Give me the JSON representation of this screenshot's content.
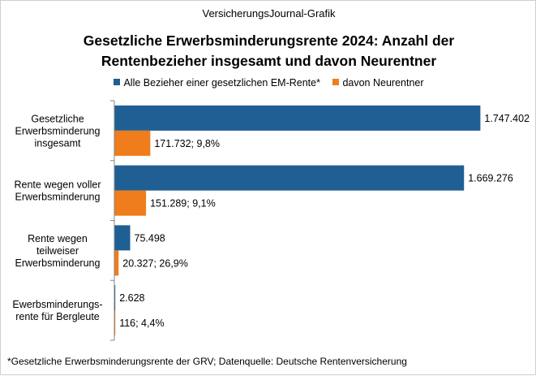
{
  "header": {
    "source": "VersicherungsJournal-Grafik"
  },
  "footnote": "*Gesetzliche Erwerbsminderungsrente  der GRV; Datenquelle:  Deutsche Rentenversicherung",
  "colors": {
    "series_total": "#1f5f94",
    "series_new": "#ef7d1b"
  },
  "chart_data": {
    "type": "bar",
    "orientation": "horizontal",
    "title": "Gesetzliche Erwerbsminderungsrente 2024: Anzahl der Rentenbezieher insgesamt und davon Neurentner",
    "title_lines": [
      "Gesetzliche  Erwerbsminderungsrente  2024:  Anzahl  der",
      "Rentenbezieher  insgesamt  und  davon  Neurentner"
    ],
    "categories": [
      [
        "Gesetzliche",
        "Erwerbsminderung",
        "insgesamt"
      ],
      [
        "Rente wegen voller",
        "Erwerbsminderung"
      ],
      [
        "Rente wegen",
        "teilweiser",
        "Erwerbsminderung"
      ],
      [
        "Ewerbsminderungs-",
        "rente für Bergleute"
      ]
    ],
    "series": [
      {
        "name": "Alle Bezieher einer gesetzlichen EM-Rente*",
        "values": [
          1747402,
          1669276,
          75498,
          2628
        ],
        "labels": [
          "1.747.402",
          "1.669.276",
          "75.498",
          "2.628"
        ]
      },
      {
        "name": "davon Neurentner",
        "values": [
          171732,
          151289,
          20327,
          116
        ],
        "labels": [
          "171.732;  9,8%",
          "151.289;  9,1%",
          "20.327;  26,9%",
          "116;  4,4%"
        ]
      }
    ],
    "legend_position": "top",
    "xlim": [
      0,
      1800000
    ],
    "xlabel": "",
    "ylabel": ""
  }
}
